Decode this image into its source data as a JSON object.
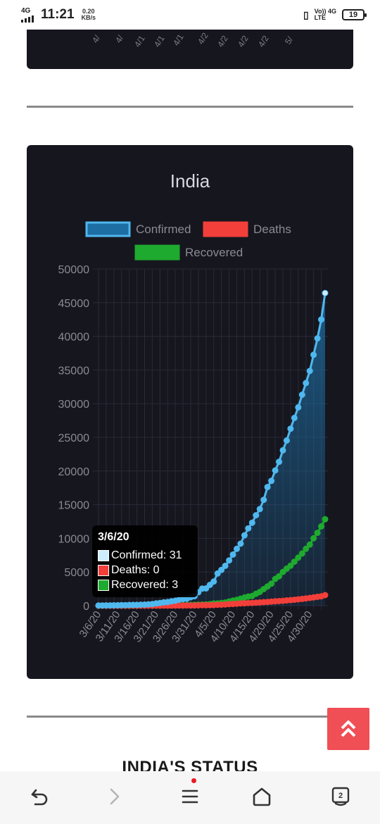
{
  "status_bar": {
    "network": "4G",
    "time": "11:21",
    "speed_value": "0.20",
    "speed_unit": "KB/s",
    "volte_top": "Vo)) 4G",
    "volte_bottom": "LTE",
    "battery": "19"
  },
  "prev_card": {
    "labels": [
      "4/",
      "4/",
      "4/1",
      "4/1",
      "4/1",
      "4/2",
      "4/2",
      "4/2",
      "4/2",
      "5/"
    ]
  },
  "chart_data": {
    "type": "line",
    "title": "India",
    "legend": [
      "Confirmed",
      "Deaths",
      "Recovered"
    ],
    "legend_position": "top",
    "colors": {
      "Confirmed": "#4fb8ee",
      "Deaths": "#f23f3a",
      "Recovered": "#1eaa2e",
      "grid": "#2a2a38",
      "text": "#8a8a94"
    },
    "xlabel": "",
    "ylabel": "",
    "ylim": [
      0,
      50000
    ],
    "yticks": [
      "50000",
      "45000",
      "40000",
      "35000",
      "30000",
      "25000",
      "20000",
      "15000",
      "10000",
      "5000",
      "0"
    ],
    "xticks": [
      "3/6/20",
      "3/11/20",
      "3/16/20",
      "3/21/20",
      "3/26/20",
      "3/31/20",
      "4/5/20",
      "4/10/20",
      "4/15/20",
      "4/20/20",
      "4/25/20",
      "4/30/20"
    ],
    "grid": true,
    "series": [
      {
        "name": "Confirmed",
        "values": [
          31,
          34,
          39,
          43,
          56,
          62,
          73,
          82,
          102,
          113,
          119,
          142,
          156,
          194,
          244,
          330,
          396,
          499,
          536,
          657,
          727,
          887,
          987,
          1024,
          1251,
          1397,
          1998,
          2543,
          2567,
          3082,
          3588,
          4778,
          5311,
          5916,
          6725,
          7598,
          8446,
          9205,
          10453,
          11487,
          12322,
          13430,
          14352,
          15722,
          17615,
          18539,
          20080,
          21370,
          23077,
          24530,
          26283,
          27890,
          29451,
          31324,
          33062,
          34863,
          37257,
          39699,
          42505,
          46433
        ]
      },
      {
        "name": "Deaths",
        "values": [
          0,
          0,
          0,
          0,
          0,
          0,
          1,
          2,
          2,
          2,
          2,
          3,
          3,
          4,
          5,
          7,
          10,
          10,
          11,
          12,
          20,
          20,
          24,
          27,
          32,
          35,
          58,
          72,
          72,
          86,
          99,
          136,
          150,
          178,
          226,
          246,
          288,
          331,
          358,
          393,
          405,
          448,
          486,
          521,
          559,
          592,
          645,
          681,
          721,
          780,
          825,
          881,
          939,
          1008,
          1079,
          1154,
          1223,
          1323,
          1391,
          1568
        ]
      },
      {
        "name": "Recovered",
        "values": [
          3,
          3,
          4,
          4,
          4,
          10,
          10,
          10,
          10,
          13,
          13,
          14,
          20,
          20,
          23,
          23,
          35,
          40,
          43,
          45,
          65,
          75,
          85,
          95,
          102,
          124,
          151,
          169,
          191,
          229,
          326,
          350,
          411,
          473,
          617,
          764,
          857,
          1036,
          1216,
          1359,
          1432,
          1768,
          2041,
          2463,
          2854,
          3273,
          3975,
          4370,
          5012,
          5498,
          5939,
          6523,
          7137,
          7747,
          8437,
          9068,
          10007,
          10819,
          11775,
          12847
        ]
      }
    ],
    "tooltip": {
      "date": "3/6/20",
      "lines": [
        "Confirmed: 31",
        "Deaths: 0",
        "Recovered: 3"
      ]
    }
  },
  "scroll_top": {
    "icon": "double-chevron-up-icon"
  },
  "section_heading": "INDIA'S STATUS",
  "nav": {
    "tabs_count": "2",
    "icons": [
      "back-icon",
      "forward-icon",
      "menu-icon",
      "home-icon",
      "tabs-icon"
    ]
  }
}
